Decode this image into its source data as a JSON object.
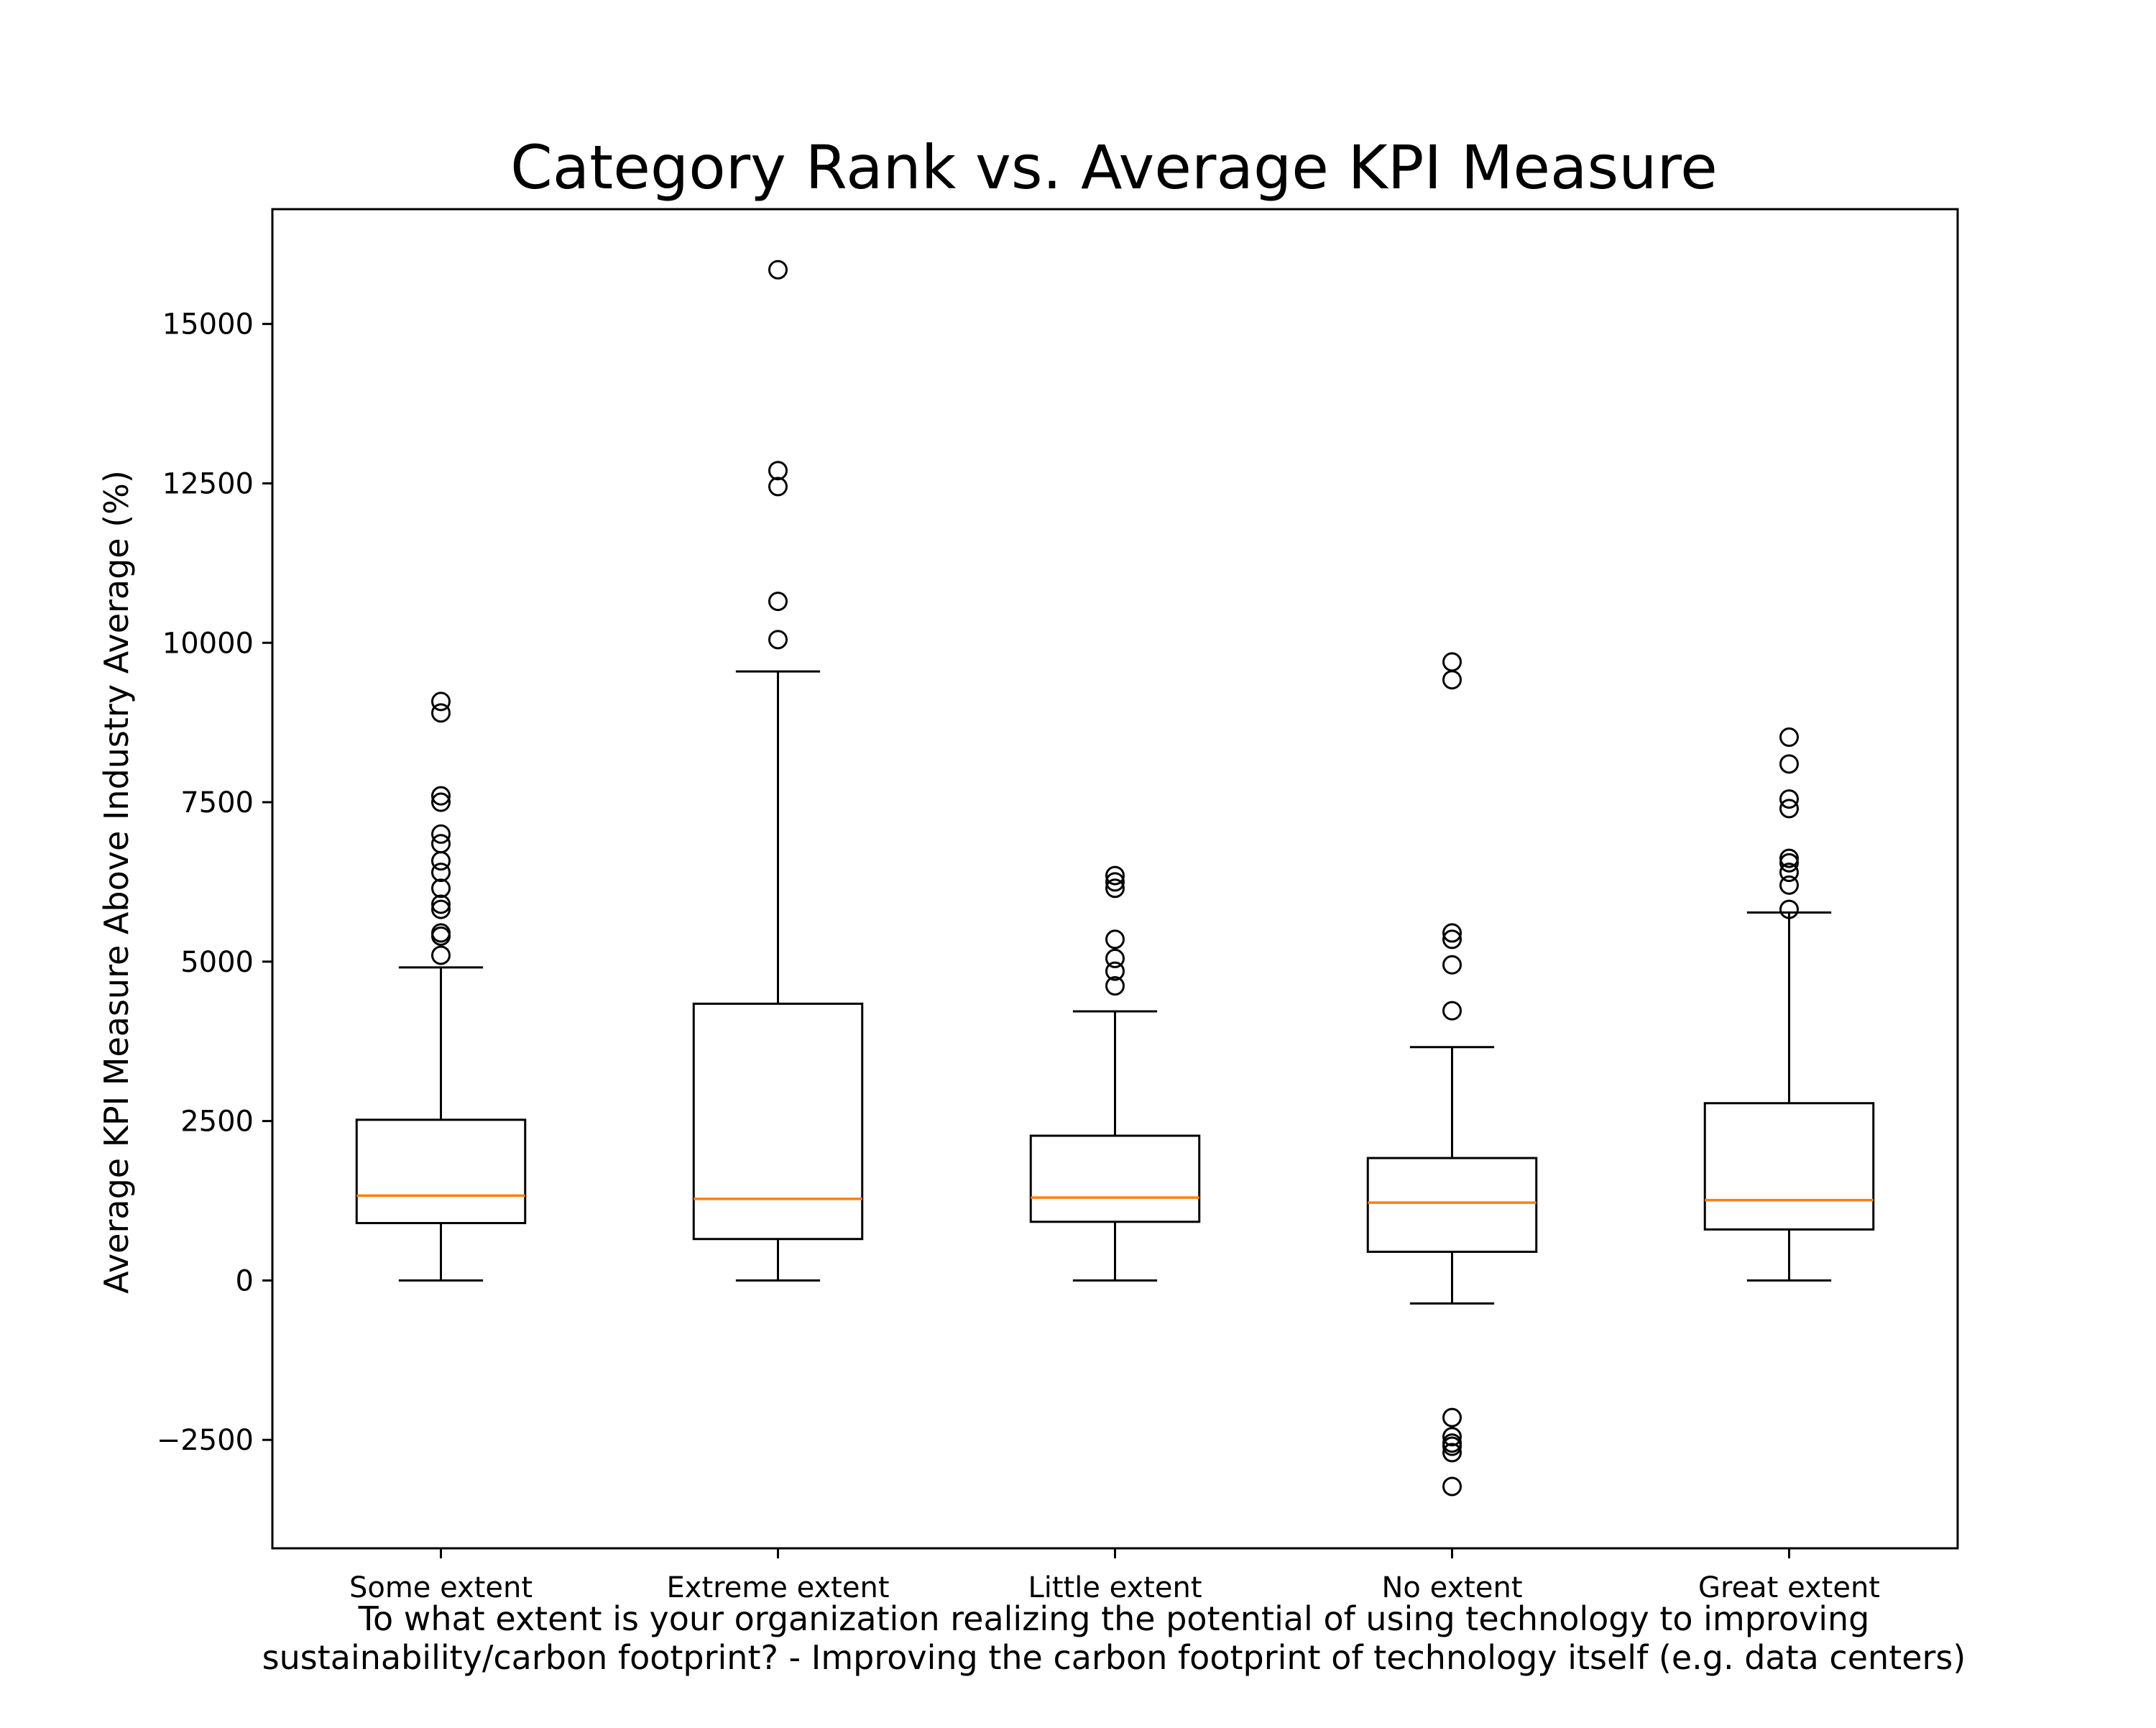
{
  "chart_data": {
    "type": "box",
    "title": "Category Rank vs. Average KPI Measure",
    "xlabel_lines": [
      "To what extent is your organization realizing the potential of using technology to improving",
      "sustainability/carbon footprint? - Improving the carbon footprint of technology itself (e.g. data centers)"
    ],
    "ylabel": "Average KPI Measure Above Industry Average (%)",
    "ylim": [
      -4200,
      16800
    ],
    "yticks": [
      -2500,
      0,
      2500,
      5000,
      7500,
      10000,
      12500,
      15000
    ],
    "ytick_labels": [
      "−2500",
      "0",
      "2500",
      "5000",
      "7500",
      "10000",
      "12500",
      "15000"
    ],
    "grid": false,
    "legend": "none",
    "colors": {
      "box": "#000000",
      "median": "#ff7f0e",
      "flier": "#000000"
    },
    "categories": [
      "Some extent",
      "Extreme extent",
      "Little extent",
      "No extent",
      "Great extent"
    ],
    "boxes": [
      {
        "category": "Some extent",
        "whisker_low": 0,
        "q1": 900,
        "median": 1330,
        "q3": 2520,
        "whisker_high": 4910,
        "fliers": [
          5100,
          5400,
          5450,
          5820,
          5900,
          6150,
          6400,
          6580,
          6850,
          7000,
          7500,
          7600,
          8900,
          9080
        ]
      },
      {
        "category": "Extreme extent",
        "whisker_low": 0,
        "q1": 650,
        "median": 1280,
        "q3": 4340,
        "whisker_high": 9550,
        "fliers": [
          10050,
          10650,
          12450,
          12700,
          15850
        ]
      },
      {
        "category": "Little extent",
        "whisker_low": 0,
        "q1": 920,
        "median": 1300,
        "q3": 2270,
        "whisker_high": 4220,
        "fliers": [
          4620,
          4850,
          5050,
          5350,
          6150,
          6250,
          6350
        ]
      },
      {
        "category": "No extent",
        "whisker_low": -360,
        "q1": 450,
        "median": 1220,
        "q3": 1920,
        "whisker_high": 3660,
        "fliers": [
          4230,
          4950,
          5350,
          5450,
          9420,
          9700,
          -2150,
          -2450,
          -2550,
          -2600,
          -2700,
          -3230
        ]
      },
      {
        "category": "Great extent",
        "whisker_low": 0,
        "q1": 800,
        "median": 1260,
        "q3": 2780,
        "whisker_high": 5770,
        "fliers": [
          5820,
          6200,
          6400,
          6550,
          6620,
          7400,
          7550,
          8100,
          8520
        ]
      }
    ]
  }
}
